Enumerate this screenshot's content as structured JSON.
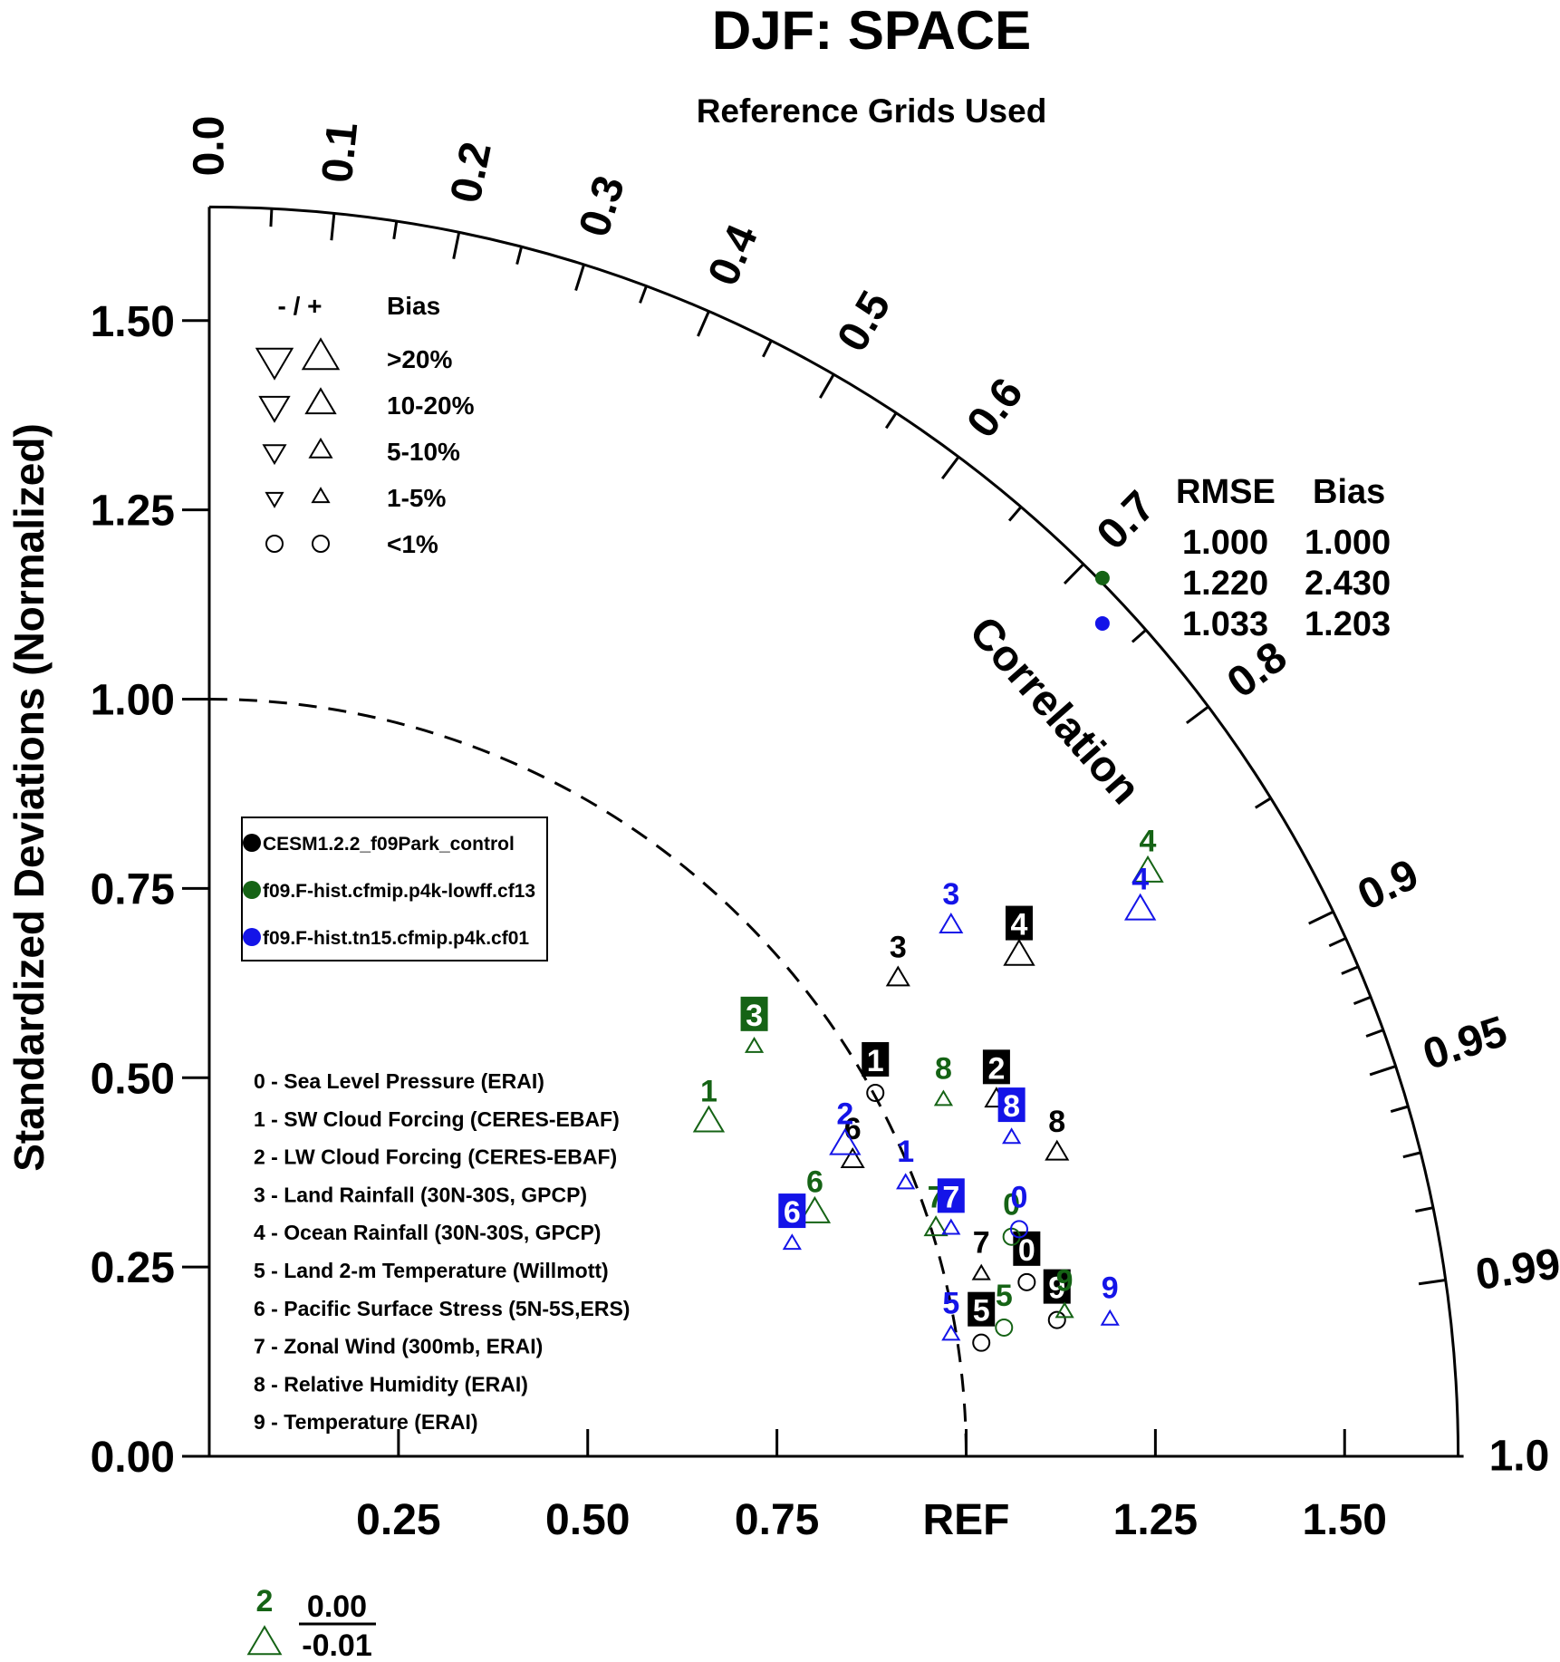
{
  "chart_data": {
    "type": "scatter",
    "subtype": "taylor-diagram",
    "title": "DJF: SPACE",
    "subtitle": "Reference Grids Used",
    "ylabel": "Standardized Deviations (Normalized)",
    "correlation_label": "Correlation",
    "ref_label": "REF",
    "std_range": [
      0,
      1.65
    ],
    "x_ticks": [
      "0.25",
      "0.50",
      "0.75",
      "1.25",
      "1.50"
    ],
    "x_tick_values": [
      0.25,
      0.5,
      0.75,
      1.25,
      1.5
    ],
    "y_ticks": [
      "0.00",
      "0.25",
      "0.50",
      "0.75",
      "1.00",
      "1.25",
      "1.50"
    ],
    "y_tick_values": [
      0,
      0.25,
      0.5,
      0.75,
      1.0,
      1.25,
      1.5
    ],
    "corr_labels": [
      "0.0",
      "0.1",
      "0.2",
      "0.3",
      "0.4",
      "0.5",
      "0.6",
      "0.7",
      "0.8",
      "0.9",
      "0.95",
      "0.99",
      "1.0"
    ],
    "corr_label_values": [
      0,
      0.1,
      0.2,
      0.3,
      0.4,
      0.5,
      0.6,
      0.7,
      0.8,
      0.9,
      0.95,
      0.99,
      1.0
    ],
    "corr_minor_ticks": [
      0.05,
      0.15,
      0.25,
      0.35,
      0.45,
      0.55,
      0.65,
      0.75,
      0.85,
      0.91,
      0.92,
      0.93,
      0.94,
      0.96,
      0.97,
      0.98
    ],
    "bias_legend": {
      "header_symbols": "- / +",
      "header": "Bias",
      "rows": [
        {
          "label": ">20%",
          "size": 4
        },
        {
          "label": "10-20%",
          "size": 3
        },
        {
          "label": "5-10%",
          "size": 2
        },
        {
          "label": "1-5%",
          "size": 1
        },
        {
          "label": "<1%",
          "size": 0
        }
      ]
    },
    "stats_table": {
      "headers": [
        "RMSE",
        "Bias"
      ],
      "rows": [
        {
          "color": "#000000",
          "rmse": "1.000",
          "bias": "1.000"
        },
        {
          "color": "#156315",
          "rmse": "1.220",
          "bias": "2.430"
        },
        {
          "color": "#1414e8",
          "rmse": "1.033",
          "bias": "1.203"
        }
      ]
    },
    "series": [
      {
        "name": "CESM1.2.2_f09Park_control",
        "color": "#000000"
      },
      {
        "name": "f09.F-hist.cfmip.p4k-lowff.cf13",
        "color": "#156315"
      },
      {
        "name": "f09.F-hist.tn15.cfmip.p4k.cf01",
        "color": "#1414e8"
      }
    ],
    "variables": [
      "0 - Sea Level Pressure (ERAI)",
      "1 - SW Cloud Forcing (CERES-EBAF)",
      "2 - LW Cloud Forcing (CERES-EBAF)",
      "3 - Land Rainfall (30N-30S, GPCP)",
      "4 - Ocean Rainfall (30N-30S, GPCP)",
      "5 - Land 2-m Temperature (Willmott)",
      "6 - Pacific Surface Stress (5N-5S,ERS)",
      "7 - Zonal Wind (300mb, ERAI)",
      "8 - Relative Humidity (ERAI)",
      "9 - Temperature (ERAI)"
    ],
    "points": [
      {
        "series": 0,
        "label": "0",
        "x": 1.08,
        "y": 0.23,
        "marker": "circle",
        "size": 0,
        "boxed": true
      },
      {
        "series": 0,
        "label": "1",
        "x": 0.88,
        "y": 0.48,
        "marker": "circle",
        "size": 0,
        "boxed": true
      },
      {
        "series": 0,
        "label": "2",
        "x": 1.04,
        "y": 0.47,
        "marker": "up",
        "size": 2,
        "boxed": true
      },
      {
        "series": 0,
        "label": "3",
        "x": 0.91,
        "y": 0.63,
        "marker": "up",
        "size": 2,
        "boxed": false
      },
      {
        "series": 0,
        "label": "4",
        "x": 1.07,
        "y": 0.66,
        "marker": "up",
        "size": 3,
        "boxed": true
      },
      {
        "series": 0,
        "label": "5",
        "x": 1.02,
        "y": 0.15,
        "marker": "circle",
        "size": 0,
        "boxed": true
      },
      {
        "series": 0,
        "label": "6",
        "x": 0.85,
        "y": 0.39,
        "marker": "up",
        "size": 2,
        "boxed": false
      },
      {
        "series": 0,
        "label": "7",
        "x": 1.02,
        "y": 0.24,
        "marker": "up",
        "size": 1,
        "boxed": false
      },
      {
        "series": 0,
        "label": "8",
        "x": 1.12,
        "y": 0.4,
        "marker": "up",
        "size": 2,
        "boxed": false
      },
      {
        "series": 0,
        "label": "9",
        "x": 1.12,
        "y": 0.18,
        "marker": "circle",
        "size": 0,
        "boxed": true
      },
      {
        "series": 1,
        "label": "0",
        "x": 1.06,
        "y": 0.29,
        "marker": "circle",
        "size": 0,
        "boxed": false
      },
      {
        "series": 1,
        "label": "1",
        "x": 0.66,
        "y": 0.44,
        "marker": "up",
        "size": 3,
        "boxed": false
      },
      {
        "series": 1,
        "label": "3",
        "x": 0.72,
        "y": 0.54,
        "marker": "up",
        "size": 1,
        "boxed": true
      },
      {
        "series": 1,
        "label": "4",
        "x": 1.24,
        "y": 0.77,
        "marker": "up",
        "size": 3,
        "boxed": false
      },
      {
        "series": 1,
        "label": "5",
        "x": 1.05,
        "y": 0.17,
        "marker": "circle",
        "size": 0,
        "boxed": false
      },
      {
        "series": 1,
        "label": "6",
        "x": 0.8,
        "y": 0.32,
        "marker": "up",
        "size": 3,
        "boxed": false
      },
      {
        "series": 1,
        "label": "7",
        "x": 0.96,
        "y": 0.3,
        "marker": "up",
        "size": 2,
        "boxed": false
      },
      {
        "series": 1,
        "label": "8",
        "x": 0.97,
        "y": 0.47,
        "marker": "up",
        "size": 1,
        "boxed": false
      },
      {
        "series": 1,
        "label": "9",
        "x": 1.13,
        "y": 0.19,
        "marker": "up",
        "size": 1,
        "boxed": false
      },
      {
        "series": 2,
        "label": "0",
        "x": 1.07,
        "y": 0.3,
        "marker": "circle",
        "size": 0,
        "boxed": false
      },
      {
        "series": 2,
        "label": "1",
        "x": 0.92,
        "y": 0.36,
        "marker": "up",
        "size": 1,
        "boxed": false
      },
      {
        "series": 2,
        "label": "2",
        "x": 0.84,
        "y": 0.41,
        "marker": "up",
        "size": 3,
        "boxed": false
      },
      {
        "series": 2,
        "label": "3",
        "x": 0.98,
        "y": 0.7,
        "marker": "up",
        "size": 2,
        "boxed": false
      },
      {
        "series": 2,
        "label": "4",
        "x": 1.23,
        "y": 0.72,
        "marker": "up",
        "size": 3,
        "boxed": false
      },
      {
        "series": 2,
        "label": "5",
        "x": 0.98,
        "y": 0.16,
        "marker": "up",
        "size": 1,
        "boxed": false
      },
      {
        "series": 2,
        "label": "6",
        "x": 0.77,
        "y": 0.28,
        "marker": "up",
        "size": 1,
        "boxed": true
      },
      {
        "series": 2,
        "label": "7",
        "x": 0.98,
        "y": 0.3,
        "marker": "up",
        "size": 1,
        "boxed": true
      },
      {
        "series": 2,
        "label": "8",
        "x": 1.06,
        "y": 0.42,
        "marker": "up",
        "size": 1,
        "boxed": true
      },
      {
        "series": 2,
        "label": "9",
        "x": 1.19,
        "y": 0.18,
        "marker": "up",
        "size": 1,
        "boxed": false
      }
    ],
    "stats_points": [
      {
        "series": 1,
        "x": 1.18,
        "y": 1.16
      },
      {
        "series": 2,
        "x": 1.18,
        "y": 1.1
      }
    ],
    "offscale": {
      "series": 1,
      "label": "2",
      "num": "0.00",
      "den": "-0.01",
      "marker": "up",
      "size": 3
    }
  }
}
